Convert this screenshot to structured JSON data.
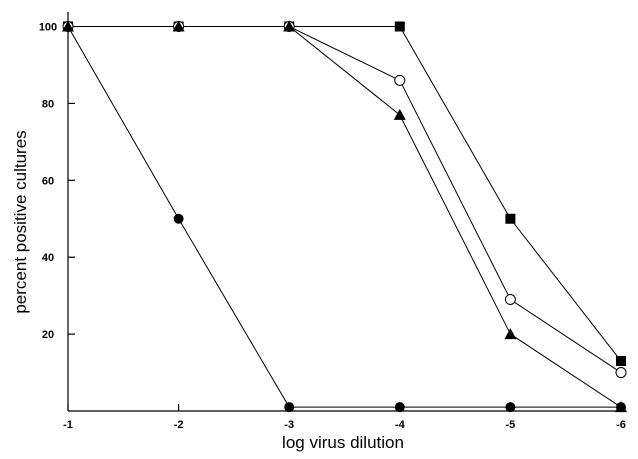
{
  "chart_data": {
    "type": "line",
    "title": "",
    "xlabel": "log virus dilution",
    "ylabel": "percent positive cultures",
    "x": [
      -1,
      -2,
      -3,
      -4,
      -5,
      -6
    ],
    "x_tick_labels": [
      "-1",
      "-2",
      "-3",
      "-4",
      "-5",
      "-6"
    ],
    "y_tick_labels": [
      "20",
      "40",
      "60",
      "80",
      "100"
    ],
    "y_ticks": [
      20,
      40,
      60,
      80,
      100
    ],
    "xlim": [
      -1,
      -6
    ],
    "ylim": [
      0,
      100
    ],
    "grid": false,
    "legend": "none",
    "series": [
      {
        "marker": "filled-circle",
        "values": [
          100,
          50,
          1,
          1,
          1,
          1
        ]
      },
      {
        "marker": "filled-square",
        "values": [
          100,
          100,
          100,
          100,
          50,
          13
        ]
      },
      {
        "marker": "open-circle",
        "values": [
          100,
          100,
          100,
          86,
          29,
          10
        ]
      },
      {
        "marker": "filled-triangle",
        "values": [
          100,
          100,
          100,
          77,
          20,
          1
        ]
      }
    ],
    "colors": {
      "line": "#000000",
      "marker": "#000000",
      "background": "#ffffff"
    }
  }
}
